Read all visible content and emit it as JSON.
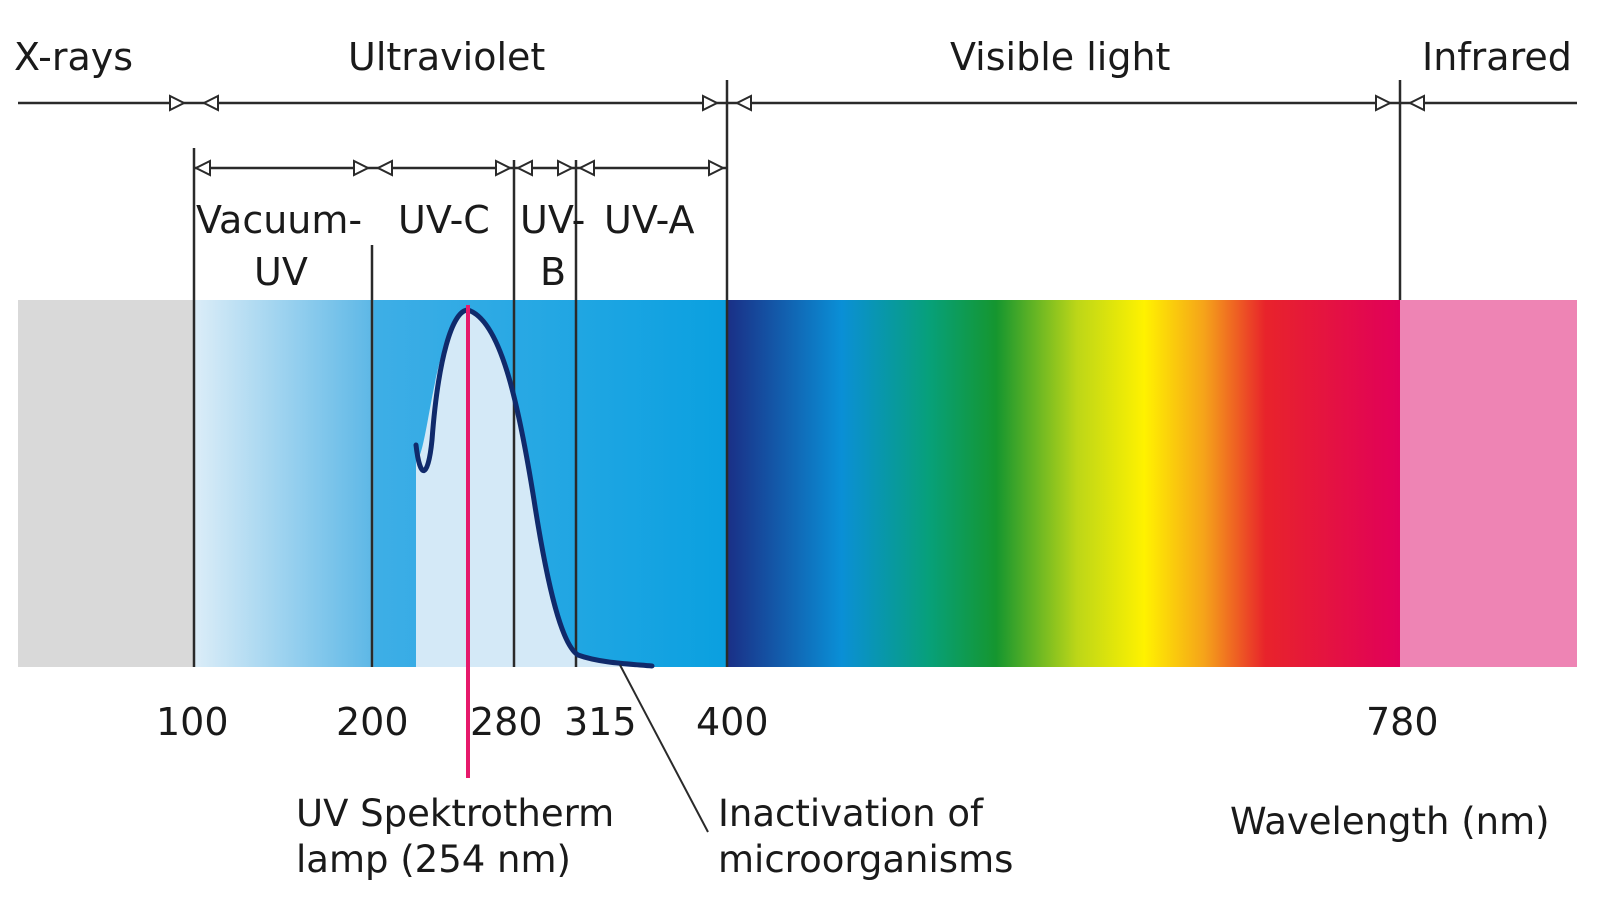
{
  "regions": [
    {
      "key": "xrays",
      "label": "X-rays"
    },
    {
      "key": "ultraviolet",
      "label": "Ultraviolet"
    },
    {
      "key": "visible",
      "label": "Visible light"
    },
    {
      "key": "infrared",
      "label": "Infrared"
    }
  ],
  "uv_bands": [
    {
      "key": "vacuum",
      "label_lines": [
        "Vacuum-",
        "UV"
      ]
    },
    {
      "key": "uvc",
      "label_lines": [
        "UV-C"
      ]
    },
    {
      "key": "uvb",
      "label_lines": [
        "UV-",
        "B"
      ]
    },
    {
      "key": "uva",
      "label_lines": [
        "UV-A"
      ]
    }
  ],
  "ticks": [
    "100",
    "200",
    "280",
    "315",
    "400",
    "780"
  ],
  "lamp_note": [
    "UV Spektrotherm",
    "lamp (254 nm)"
  ],
  "inactivation_note": [
    "Inactivation of",
    "microorganisms"
  ],
  "axis_label": "Wavelength (nm)",
  "colors": {
    "xray_gray": "#d9d9d9",
    "uv_light": "#cfe6f5",
    "uv_blue": "#0aa0e0",
    "lamp_line": "#e6196b",
    "curve": "#102a6b",
    "infrared_pink": "#ee84b4"
  }
}
